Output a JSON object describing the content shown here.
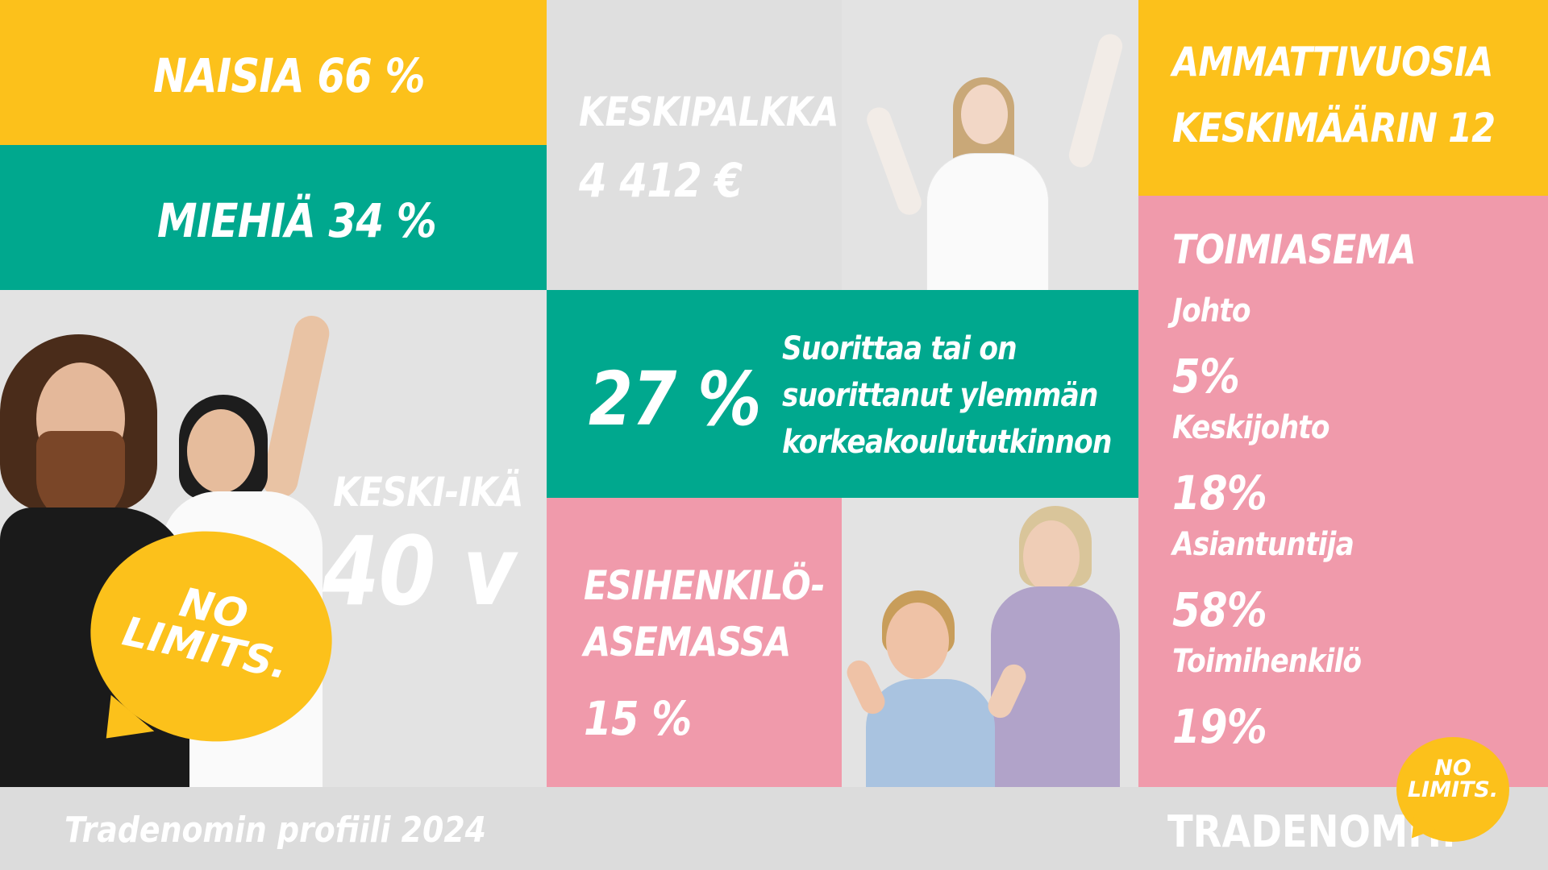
{
  "stats": {
    "women": "NAISIA 66 %",
    "men": "MIEHIÄ 34 %",
    "salary_label": "KESKIPALKKA",
    "salary_value": "4 412 €",
    "experience_line1": "AMMATTIVUOSIA",
    "experience_line2": "KESKIMÄÄRIN 12",
    "age_label": "KESKI-IKÄ",
    "age_value": "40 v",
    "degree_percent": "27 %",
    "degree_line1": "Suorittaa tai on",
    "degree_line2": "suorittanut ylemmän",
    "degree_line3": "korkeakoulututkinnon",
    "supervisor_line1": "ESIHENKILÖ-",
    "supervisor_line2": "ASEMASSA",
    "supervisor_value": "15 %"
  },
  "position": {
    "title": "TOIMIASEMA",
    "items": [
      {
        "label": "Johto",
        "value": "5%"
      },
      {
        "label": "Keskijohto",
        "value": "18%"
      },
      {
        "label": "Asiantuntija",
        "value": "58%"
      },
      {
        "label": "Toimihenkilö",
        "value": "19%"
      }
    ]
  },
  "sign": {
    "line1": "NO",
    "line2": "LIMITS."
  },
  "footer": {
    "title": "Tradenomin profiili 2024",
    "brand": "TRADENOMIT.",
    "logo_line1": "NO",
    "logo_line2": "LIMITS."
  },
  "colors": {
    "yellow": "#FCC11B",
    "green": "#00A88E",
    "pink": "#F09AAB",
    "grey": "#DFDFDF"
  }
}
